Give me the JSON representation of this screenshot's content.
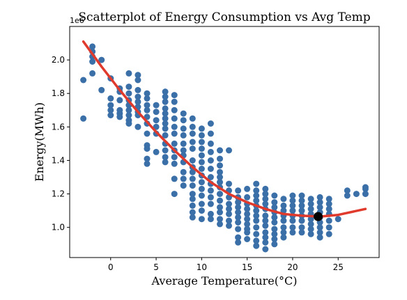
{
  "chart_data": {
    "type": "scatter",
    "title": "Scatterplot of Energy Consumption vs Avg Temp",
    "xlabel": "Average Temperature(°C)",
    "ylabel": "Energy(MWh)",
    "y_exponent_label": "1e6",
    "xlim": [
      -4.5,
      29.5
    ],
    "ylim": [
      820000,
      2200000
    ],
    "x_ticks": [
      0,
      5,
      10,
      15,
      20,
      25
    ],
    "y_ticks": [
      1000000,
      1200000,
      1400000,
      1600000,
      1800000,
      2000000
    ],
    "y_tick_labels": [
      "1.0",
      "1.2",
      "1.4",
      "1.6",
      "1.8",
      "2.0"
    ],
    "grid": false,
    "colors": {
      "points": "#3a6fa8",
      "fit": "#e03a2c",
      "marker": "#000000"
    },
    "fit_curve": {
      "x": [
        -3,
        -1,
        1,
        3,
        5,
        7,
        9,
        11,
        13,
        15,
        17,
        19,
        21,
        23,
        25,
        28
      ],
      "y": [
        2110000,
        1960000,
        1820000,
        1690000,
        1570000,
        1460000,
        1360000,
        1270000,
        1200000,
        1150000,
        1110000,
        1080000,
        1070000,
        1065000,
        1075000,
        1110000
      ]
    },
    "minimum_point": {
      "x": 22.8,
      "y": 1065000
    },
    "points": [
      [
        -3,
        1880000
      ],
      [
        -3,
        1650000
      ],
      [
        -2,
        2080000
      ],
      [
        -2,
        2050000
      ],
      [
        -2,
        2020000
      ],
      [
        -2,
        1990000
      ],
      [
        -2,
        1920000
      ],
      [
        -1,
        2000000
      ],
      [
        -1,
        1820000
      ],
      [
        0,
        1890000
      ],
      [
        0,
        1770000
      ],
      [
        0,
        1730000
      ],
      [
        0,
        1700000
      ],
      [
        0,
        1670000
      ],
      [
        1,
        1830000
      ],
      [
        1,
        1810000
      ],
      [
        1,
        1760000
      ],
      [
        1,
        1700000
      ],
      [
        1,
        1680000
      ],
      [
        1,
        1660000
      ],
      [
        2,
        1920000
      ],
      [
        2,
        1840000
      ],
      [
        2,
        1800000
      ],
      [
        2,
        1760000
      ],
      [
        2,
        1730000
      ],
      [
        2,
        1700000
      ],
      [
        2,
        1670000
      ],
      [
        2,
        1640000
      ],
      [
        2,
        1620000
      ],
      [
        3,
        1910000
      ],
      [
        3,
        1880000
      ],
      [
        3,
        1820000
      ],
      [
        3,
        1780000
      ],
      [
        3,
        1750000
      ],
      [
        3,
        1720000
      ],
      [
        3,
        1690000
      ],
      [
        3,
        1670000
      ],
      [
        3,
        1600000
      ],
      [
        4,
        1800000
      ],
      [
        4,
        1770000
      ],
      [
        4,
        1730000
      ],
      [
        4,
        1700000
      ],
      [
        4,
        1660000
      ],
      [
        4,
        1620000
      ],
      [
        4,
        1560000
      ],
      [
        4,
        1490000
      ],
      [
        4,
        1470000
      ],
      [
        4,
        1410000
      ],
      [
        4,
        1380000
      ],
      [
        5,
        1730000
      ],
      [
        5,
        1690000
      ],
      [
        5,
        1640000
      ],
      [
        5,
        1600000
      ],
      [
        5,
        1560000
      ],
      [
        5,
        1450000
      ],
      [
        6,
        1810000
      ],
      [
        6,
        1780000
      ],
      [
        6,
        1750000
      ],
      [
        6,
        1710000
      ],
      [
        6,
        1680000
      ],
      [
        6,
        1650000
      ],
      [
        6,
        1620000
      ],
      [
        6,
        1590000
      ],
      [
        6,
        1550000
      ],
      [
        6,
        1500000
      ],
      [
        6,
        1460000
      ],
      [
        6,
        1420000
      ],
      [
        6,
        1390000
      ],
      [
        7,
        1790000
      ],
      [
        7,
        1750000
      ],
      [
        7,
        1700000
      ],
      [
        7,
        1650000
      ],
      [
        7,
        1600000
      ],
      [
        7,
        1560000
      ],
      [
        7,
        1500000
      ],
      [
        7,
        1460000
      ],
      [
        7,
        1420000
      ],
      [
        7,
        1380000
      ],
      [
        7,
        1290000
      ],
      [
        7,
        1200000
      ],
      [
        8,
        1680000
      ],
      [
        8,
        1640000
      ],
      [
        8,
        1590000
      ],
      [
        8,
        1550000
      ],
      [
        8,
        1500000
      ],
      [
        8,
        1460000
      ],
      [
        8,
        1430000
      ],
      [
        8,
        1390000
      ],
      [
        8,
        1330000
      ],
      [
        8,
        1290000
      ],
      [
        8,
        1250000
      ],
      [
        9,
        1650000
      ],
      [
        9,
        1600000
      ],
      [
        9,
        1560000
      ],
      [
        9,
        1510000
      ],
      [
        9,
        1470000
      ],
      [
        9,
        1400000
      ],
      [
        9,
        1360000
      ],
      [
        9,
        1330000
      ],
      [
        9,
        1290000
      ],
      [
        9,
        1250000
      ],
      [
        9,
        1200000
      ],
      [
        9,
        1170000
      ],
      [
        9,
        1130000
      ],
      [
        9,
        1090000
      ],
      [
        9,
        1060000
      ],
      [
        10,
        1590000
      ],
      [
        10,
        1550000
      ],
      [
        10,
        1510000
      ],
      [
        10,
        1470000
      ],
      [
        10,
        1430000
      ],
      [
        10,
        1390000
      ],
      [
        10,
        1350000
      ],
      [
        10,
        1310000
      ],
      [
        10,
        1270000
      ],
      [
        10,
        1230000
      ],
      [
        10,
        1190000
      ],
      [
        10,
        1140000
      ],
      [
        10,
        1100000
      ],
      [
        10,
        1050000
      ],
      [
        11,
        1620000
      ],
      [
        11,
        1560000
      ],
      [
        11,
        1500000
      ],
      [
        11,
        1450000
      ],
      [
        11,
        1400000
      ],
      [
        11,
        1350000
      ],
      [
        11,
        1300000
      ],
      [
        11,
        1260000
      ],
      [
        11,
        1220000
      ],
      [
        11,
        1180000
      ],
      [
        11,
        1140000
      ],
      [
        11,
        1080000
      ],
      [
        11,
        1050000
      ],
      [
        12,
        1460000
      ],
      [
        12,
        1410000
      ],
      [
        12,
        1370000
      ],
      [
        12,
        1330000
      ],
      [
        12,
        1300000
      ],
      [
        12,
        1270000
      ],
      [
        12,
        1240000
      ],
      [
        12,
        1200000
      ],
      [
        12,
        1160000
      ],
      [
        12,
        1120000
      ],
      [
        12,
        1090000
      ],
      [
        12,
        1050000
      ],
      [
        12,
        1020000
      ],
      [
        13,
        1460000
      ],
      [
        13,
        1260000
      ],
      [
        13,
        1220000
      ],
      [
        13,
        1180000
      ],
      [
        13,
        1140000
      ],
      [
        13,
        1110000
      ],
      [
        13,
        1080000
      ],
      [
        13,
        1040000
      ],
      [
        13,
        1010000
      ],
      [
        14,
        1220000
      ],
      [
        14,
        1180000
      ],
      [
        14,
        1150000
      ],
      [
        14,
        1120000
      ],
      [
        14,
        1090000
      ],
      [
        14,
        1060000
      ],
      [
        14,
        1030000
      ],
      [
        14,
        990000
      ],
      [
        14,
        940000
      ],
      [
        14,
        910000
      ],
      [
        15,
        1230000
      ],
      [
        15,
        1180000
      ],
      [
        15,
        1140000
      ],
      [
        15,
        1110000
      ],
      [
        15,
        1080000
      ],
      [
        15,
        1050000
      ],
      [
        15,
        1020000
      ],
      [
        15,
        990000
      ],
      [
        15,
        970000
      ],
      [
        15,
        930000
      ],
      [
        16,
        1260000
      ],
      [
        16,
        1220000
      ],
      [
        16,
        1190000
      ],
      [
        16,
        1160000
      ],
      [
        16,
        1130000
      ],
      [
        16,
        1100000
      ],
      [
        16,
        1070000
      ],
      [
        16,
        1040000
      ],
      [
        16,
        1000000
      ],
      [
        16,
        960000
      ],
      [
        16,
        920000
      ],
      [
        16,
        890000
      ],
      [
        17,
        1230000
      ],
      [
        17,
        1200000
      ],
      [
        17,
        1170000
      ],
      [
        17,
        1140000
      ],
      [
        17,
        1110000
      ],
      [
        17,
        1070000
      ],
      [
        17,
        1040000
      ],
      [
        17,
        1010000
      ],
      [
        17,
        970000
      ],
      [
        17,
        940000
      ],
      [
        17,
        910000
      ],
      [
        17,
        870000
      ],
      [
        18,
        1190000
      ],
      [
        18,
        1150000
      ],
      [
        18,
        1120000
      ],
      [
        18,
        1090000
      ],
      [
        18,
        1060000
      ],
      [
        18,
        1030000
      ],
      [
        18,
        990000
      ],
      [
        18,
        960000
      ],
      [
        18,
        930000
      ],
      [
        18,
        900000
      ],
      [
        19,
        1170000
      ],
      [
        19,
        1130000
      ],
      [
        19,
        1100000
      ],
      [
        19,
        1070000
      ],
      [
        19,
        1040000
      ],
      [
        19,
        1000000
      ],
      [
        19,
        970000
      ],
      [
        19,
        940000
      ],
      [
        20,
        1190000
      ],
      [
        20,
        1160000
      ],
      [
        20,
        1130000
      ],
      [
        20,
        1100000
      ],
      [
        20,
        1070000
      ],
      [
        20,
        1040000
      ],
      [
        20,
        1000000
      ],
      [
        20,
        970000
      ],
      [
        21,
        1190000
      ],
      [
        21,
        1160000
      ],
      [
        21,
        1130000
      ],
      [
        21,
        1100000
      ],
      [
        21,
        1070000
      ],
      [
        21,
        1040000
      ],
      [
        21,
        1000000
      ],
      [
        21,
        970000
      ],
      [
        22,
        1170000
      ],
      [
        22,
        1140000
      ],
      [
        22,
        1110000
      ],
      [
        22,
        1080000
      ],
      [
        22,
        1050000
      ],
      [
        22,
        1020000
      ],
      [
        22,
        990000
      ],
      [
        22,
        960000
      ],
      [
        23,
        1180000
      ],
      [
        23,
        1150000
      ],
      [
        23,
        1120000
      ],
      [
        23,
        1090000
      ],
      [
        23,
        1060000
      ],
      [
        23,
        1030000
      ],
      [
        23,
        1000000
      ],
      [
        23,
        970000
      ],
      [
        23,
        940000
      ],
      [
        24,
        1170000
      ],
      [
        24,
        1140000
      ],
      [
        24,
        1110000
      ],
      [
        24,
        1080000
      ],
      [
        24,
        1040000
      ],
      [
        24,
        1000000
      ],
      [
        24,
        960000
      ],
      [
        25,
        1050000
      ],
      [
        26,
        1220000
      ],
      [
        26,
        1190000
      ],
      [
        27,
        1200000
      ],
      [
        28,
        1240000
      ],
      [
        28,
        1230000
      ],
      [
        28,
        1200000
      ]
    ]
  }
}
